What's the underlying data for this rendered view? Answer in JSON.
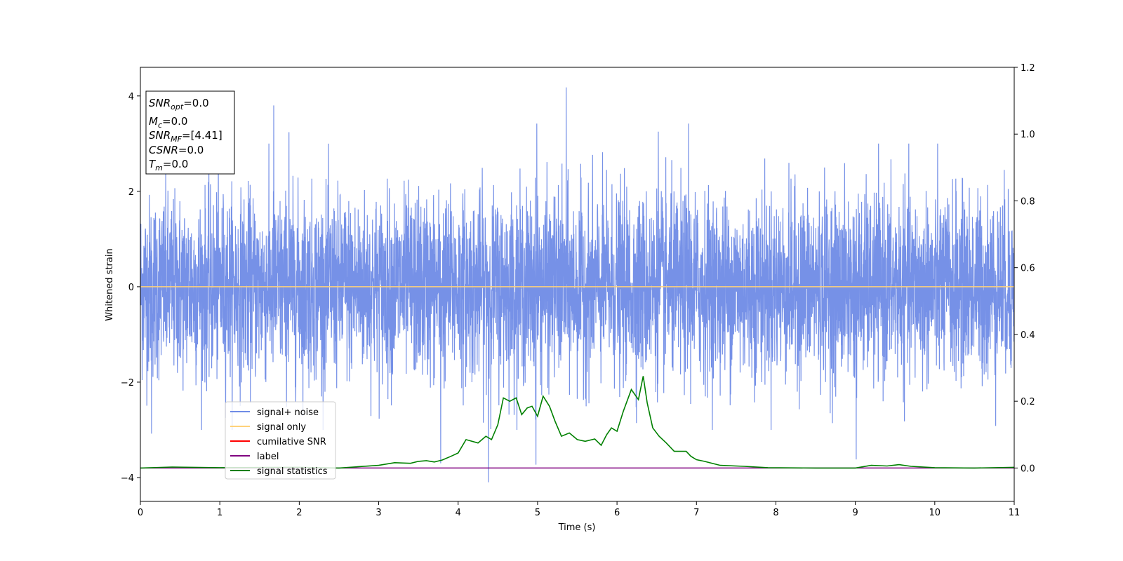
{
  "chart_data": {
    "type": "line",
    "xlabel": "Time (s)",
    "ylabel": "Whitened strain",
    "xlim": [
      0,
      11
    ],
    "ylim_left": [
      -4.5,
      4.6
    ],
    "ylim_right": [
      -0.1,
      1.2
    ],
    "x_ticks": [
      "0",
      "1",
      "2",
      "3",
      "4",
      "5",
      "6",
      "7",
      "8",
      "9",
      "10",
      "11"
    ],
    "y_ticks_left": [
      "−4",
      "−2",
      "0",
      "2",
      "4"
    ],
    "y_ticks_right": [
      "0.0",
      "0.2",
      "0.4",
      "0.6",
      "0.8",
      "1.0",
      "1.2"
    ],
    "legend_position": "lower-left",
    "colors": {
      "signal_noise": "#6f8be6",
      "signal_only": "#ffd27a",
      "cumulative_snr": "#ff0000",
      "label": "#800080",
      "signal_statistics": "#008000"
    },
    "series": [
      {
        "name": "signal+ noise",
        "axis": "left",
        "description_stats": {
          "mean": 0,
          "std": 0.95,
          "min": -4.1,
          "max": 4.2
        },
        "notable_peaks": [
          {
            "x": 5.36,
            "y": 4.18
          },
          {
            "x": 1.68,
            "y": 3.8
          },
          {
            "x": 4.99,
            "y": 3.42
          },
          {
            "x": 6.9,
            "y": 3.42
          },
          {
            "x": 6.52,
            "y": 3.25
          },
          {
            "x": 1.87,
            "y": 3.24
          },
          {
            "x": 4.38,
            "y": -4.1
          },
          {
            "x": 4.98,
            "y": -3.73
          },
          {
            "x": 9.01,
            "y": -3.62
          },
          {
            "x": 3.78,
            "y": -3.7
          },
          {
            "x": 0.14,
            "y": -3.08
          }
        ]
      },
      {
        "name": "signal only",
        "axis": "left",
        "x": [
          0,
          11
        ],
        "y": [
          0,
          0
        ]
      },
      {
        "name": "cumilative SNR",
        "axis": "right",
        "x": [
          0,
          11
        ],
        "y": [
          0,
          0
        ]
      },
      {
        "name": "label",
        "axis": "right",
        "x": [
          0,
          11
        ],
        "y": [
          0,
          0
        ]
      },
      {
        "name": "signal statistics",
        "axis": "right",
        "x": [
          0,
          0.4,
          1.0,
          2.0,
          2.5,
          3.0,
          3.2,
          3.4,
          3.5,
          3.6,
          3.7,
          3.8,
          3.9,
          4.0,
          4.1,
          4.25,
          4.35,
          4.42,
          4.5,
          4.57,
          4.65,
          4.73,
          4.8,
          4.87,
          4.93,
          5.0,
          5.07,
          5.15,
          5.22,
          5.3,
          5.4,
          5.5,
          5.6,
          5.72,
          5.8,
          5.87,
          5.93,
          6.0,
          6.08,
          6.18,
          6.27,
          6.33,
          6.38,
          6.45,
          6.53,
          6.62,
          6.72,
          6.78,
          6.87,
          6.93,
          7.0,
          7.1,
          7.3,
          7.6,
          7.9,
          8.5,
          9.0,
          9.2,
          9.4,
          9.55,
          9.7,
          10.0,
          10.5,
          11.0
        ],
        "y": [
          0.0,
          0.003,
          0.001,
          0.002,
          0.0,
          0.008,
          0.016,
          0.014,
          0.02,
          0.022,
          0.018,
          0.024,
          0.034,
          0.045,
          0.085,
          0.075,
          0.095,
          0.085,
          0.13,
          0.21,
          0.2,
          0.21,
          0.16,
          0.18,
          0.185,
          0.155,
          0.215,
          0.185,
          0.14,
          0.095,
          0.105,
          0.085,
          0.08,
          0.087,
          0.068,
          0.1,
          0.12,
          0.11,
          0.17,
          0.235,
          0.205,
          0.275,
          0.195,
          0.12,
          0.095,
          0.075,
          0.05,
          0.05,
          0.05,
          0.035,
          0.025,
          0.02,
          0.008,
          0.005,
          0.001,
          0.0,
          0.0,
          0.008,
          0.006,
          0.01,
          0.005,
          0.001,
          0.0,
          0.002
        ]
      }
    ]
  },
  "annotation_box": {
    "snr_opt": {
      "main": "SNR",
      "sub": "opt",
      "value": "=0.0"
    },
    "mc": {
      "main": "M",
      "sub": "c",
      "value": "=0.0"
    },
    "snr_mf": {
      "main": "SNR",
      "sub": "MF",
      "value": "=[4.41]"
    },
    "csnr": {
      "main": "CSNR",
      "value": "=0.0"
    },
    "tm": {
      "main": "T",
      "sub": "m",
      "value": "=0.0"
    }
  }
}
